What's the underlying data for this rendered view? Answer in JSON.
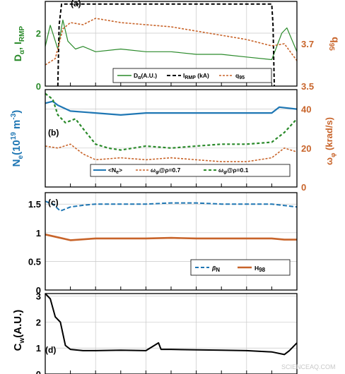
{
  "watermark": "SCIENCEAQ.COM",
  "colors": {
    "green": "#2a8a2a",
    "orange": "#c8642a",
    "blue": "#1f77b4",
    "black": "#000000",
    "grid": "#c8c8c8"
  },
  "chart_data": [
    {
      "type": "line",
      "panel_label": "(a)",
      "ylabel_left": "D_α, I_RMP",
      "ylabel_right": "q_95",
      "ylim_left": [
        0,
        3.2
      ],
      "ylim_right": [
        3.5,
        3.9
      ],
      "yticks_left": [
        "0",
        "2"
      ],
      "yticks_right": [
        "3.5",
        "3.7"
      ],
      "xlim": [
        0,
        1
      ],
      "grid": true,
      "legend_position": "bottom-right",
      "series": [
        {
          "name": "D_α(A.U.)",
          "axis": "left",
          "color": "green",
          "x": [
            0.0,
            0.02,
            0.05,
            0.07,
            0.09,
            0.12,
            0.15,
            0.2,
            0.3,
            0.4,
            0.5,
            0.6,
            0.7,
            0.8,
            0.9,
            0.94,
            0.96,
            1.0
          ],
          "y": [
            1.5,
            2.3,
            1.4,
            2.5,
            1.7,
            1.4,
            1.5,
            1.3,
            1.4,
            1.3,
            1.3,
            1.2,
            1.2,
            1.1,
            1.0,
            2.0,
            2.2,
            1.3
          ]
        },
        {
          "name": "I_RMP (kA)",
          "axis": "left",
          "color": "black",
          "x": [
            0.05,
            0.055,
            0.065,
            0.9,
            0.905,
            0.91
          ],
          "y": [
            0.0,
            2.3,
            3.1,
            3.1,
            2.3,
            0.0
          ]
        },
        {
          "name": "q_95",
          "axis": "right",
          "color": "orange",
          "x": [
            0.0,
            0.04,
            0.07,
            0.1,
            0.15,
            0.2,
            0.3,
            0.4,
            0.5,
            0.6,
            0.7,
            0.8,
            0.9,
            0.95,
            1.0
          ],
          "y": [
            3.6,
            3.63,
            3.77,
            3.8,
            3.79,
            3.82,
            3.8,
            3.79,
            3.78,
            3.76,
            3.74,
            3.72,
            3.69,
            3.7,
            3.62
          ]
        }
      ]
    },
    {
      "type": "line",
      "panel_label": "(b)",
      "ylabel_left": "N_e(10^19 m^-3)",
      "ylabel_right": "ω_φ (krad/s)",
      "ylim_left": [
        0,
        5
      ],
      "ylim_right": [
        0,
        50
      ],
      "yticks_left": [],
      "yticks_right": [
        "0",
        "20",
        "40"
      ],
      "xlim": [
        0,
        1
      ],
      "grid": true,
      "legend_position": "bottom",
      "series": [
        {
          "name": "<N_e>",
          "axis": "left",
          "color": "blue",
          "x": [
            0.0,
            0.03,
            0.05,
            0.1,
            0.2,
            0.3,
            0.4,
            0.5,
            0.6,
            0.7,
            0.8,
            0.9,
            0.93,
            1.0
          ],
          "y": [
            4.3,
            4.4,
            4.2,
            3.9,
            3.8,
            3.7,
            3.8,
            3.8,
            3.8,
            3.8,
            3.8,
            3.8,
            4.1,
            4.0
          ]
        },
        {
          "name": "ω_φ@ρ=0.7",
          "axis": "right",
          "color": "orange",
          "x": [
            0.0,
            0.05,
            0.1,
            0.15,
            0.2,
            0.3,
            0.4,
            0.5,
            0.6,
            0.7,
            0.8,
            0.9,
            0.95,
            1.0
          ],
          "y": [
            21,
            20,
            22,
            17,
            14,
            15,
            14,
            15,
            14,
            13,
            13,
            15,
            20,
            18
          ]
        },
        {
          "name": "ω_φ@ρ=0.1",
          "axis": "right",
          "color": "green",
          "x": [
            0.0,
            0.03,
            0.05,
            0.08,
            0.12,
            0.15,
            0.2,
            0.25,
            0.3,
            0.4,
            0.5,
            0.6,
            0.7,
            0.8,
            0.9,
            0.95,
            1.0
          ],
          "y": [
            48,
            45,
            37,
            33,
            35,
            30,
            22,
            20,
            19,
            21,
            20,
            21,
            22,
            22,
            23,
            28,
            35
          ]
        }
      ]
    },
    {
      "type": "line",
      "panel_label": "(c)",
      "ylim": [
        0,
        1.7
      ],
      "yticks": [
        "0",
        "0.5",
        "1",
        "1.5"
      ],
      "xlim": [
        0,
        1
      ],
      "grid": true,
      "legend_position": "bottom-right",
      "series": [
        {
          "name": "β_N",
          "color": "blue",
          "x": [
            0.0,
            0.03,
            0.06,
            0.1,
            0.15,
            0.2,
            0.3,
            0.4,
            0.5,
            0.6,
            0.7,
            0.8,
            0.9,
            1.0
          ],
          "y": [
            1.55,
            1.5,
            1.38,
            1.45,
            1.48,
            1.5,
            1.5,
            1.5,
            1.52,
            1.52,
            1.5,
            1.5,
            1.5,
            1.45
          ]
        },
        {
          "name": "H_98",
          "color": "orange",
          "x": [
            0.0,
            0.05,
            0.1,
            0.2,
            0.3,
            0.4,
            0.5,
            0.6,
            0.7,
            0.8,
            0.9,
            0.95,
            1.0
          ],
          "y": [
            0.97,
            0.92,
            0.87,
            0.9,
            0.9,
            0.9,
            0.91,
            0.9,
            0.9,
            0.9,
            0.9,
            0.88,
            0.88
          ]
        }
      ]
    },
    {
      "type": "line",
      "panel_label": "(d)",
      "ylabel": "C_w(A.U.)",
      "ylim": [
        0,
        3.1
      ],
      "yticks": [
        "0",
        "1",
        "2",
        "3"
      ],
      "xlim": [
        0,
        1
      ],
      "grid": true,
      "series": [
        {
          "name": "C_w",
          "color": "black",
          "x": [
            0.0,
            0.02,
            0.04,
            0.06,
            0.08,
            0.1,
            0.15,
            0.2,
            0.3,
            0.4,
            0.45,
            0.46,
            0.5,
            0.6,
            0.7,
            0.8,
            0.9,
            0.95,
            0.97,
            1.0
          ],
          "y": [
            3.1,
            2.9,
            2.2,
            2.0,
            1.1,
            0.95,
            0.9,
            0.9,
            0.92,
            0.9,
            1.2,
            0.95,
            0.95,
            0.93,
            0.92,
            0.9,
            0.85,
            0.75,
            0.9,
            1.2
          ]
        }
      ]
    }
  ]
}
